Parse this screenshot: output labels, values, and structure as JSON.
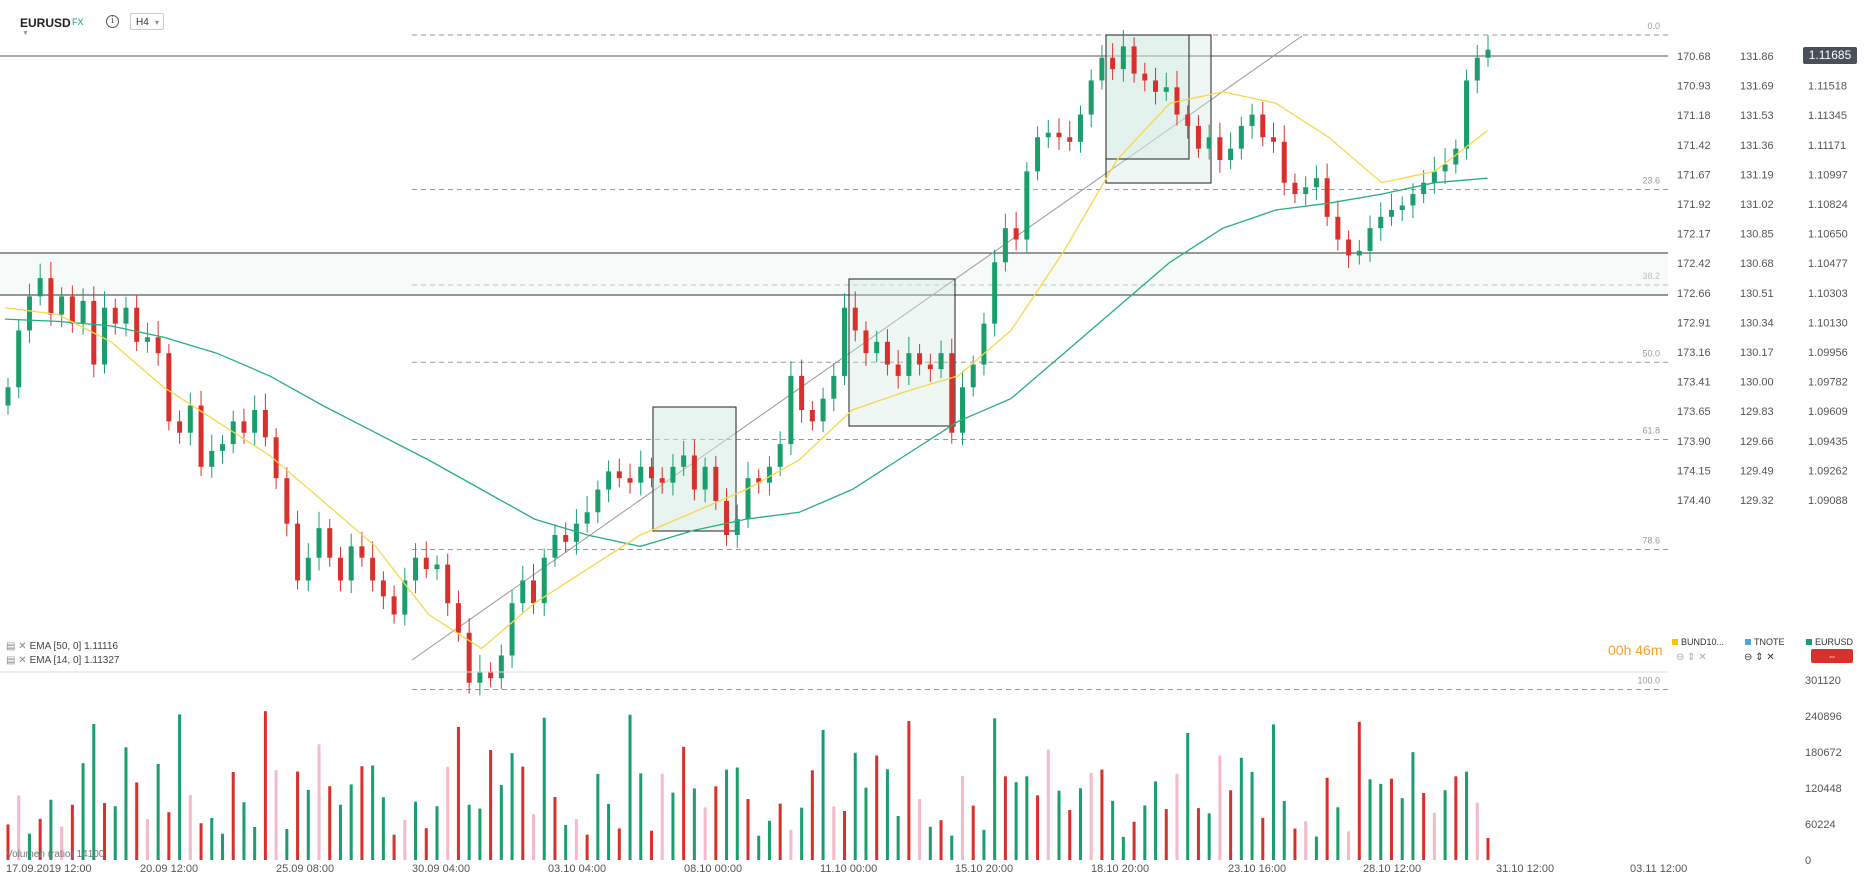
{
  "toolbar": {
    "symbol": "EURUSD",
    "type": "FX",
    "info_icon": "info-icon",
    "timeframe": "H4",
    "timeframe_chevron_icon": "chevron-down-icon"
  },
  "price_tag": "1.11685",
  "indicators": [
    {
      "label": "EMA [50, 0] 1.11116",
      "color": "#27ae84"
    },
    {
      "label": "EMA [14, 0] 1.11327",
      "color": "#f5d84a"
    }
  ],
  "countdown": "00h 46m",
  "volume_label": "Volumen (ratio) 14100",
  "legend": [
    {
      "name": "BUND10...",
      "color": "#f5c400"
    },
    {
      "name": "TNOTE",
      "color": "#4aa3df"
    },
    {
      "name": "EURUSD",
      "color": "#1a9e6c"
    }
  ],
  "legend_sub": [
    "⊖ ⇕ ✕",
    "⊖ ⇕ ✕",
    "⇔"
  ],
  "axes": {
    "right_col1": [
      "170.68",
      "170.93",
      "171.18",
      "171.42",
      "171.67",
      "171.92",
      "172.17",
      "172.42",
      "172.66",
      "172.91",
      "173.16",
      "173.41",
      "173.65",
      "173.90",
      "174.15",
      "174.40"
    ],
    "right_col2": [
      "131.86",
      "131.69",
      "131.53",
      "131.36",
      "131.19",
      "131.02",
      "130.85",
      "130.68",
      "130.51",
      "130.34",
      "130.17",
      "130.00",
      "129.83",
      "129.66",
      "129.49",
      "129.32"
    ],
    "right_col3": [
      "1.11685",
      "1.11518",
      "1.11345",
      "1.11171",
      "1.10997",
      "1.10824",
      "1.10650",
      "1.10477",
      "1.10303",
      "1.10130",
      "1.09956",
      "1.09782",
      "1.09609",
      "1.09435",
      "1.09262",
      "1.09088"
    ],
    "volume_ticks": [
      "301120",
      "240896",
      "180672",
      "120448",
      "60224",
      "0"
    ],
    "time_ticks": [
      "17.09.2019  12:00",
      "20.09  12:00",
      "25.09  08:00",
      "30.09  04:00",
      "03.10  04:00",
      "08.10  00:00",
      "11.10  00:00",
      "15.10  20:00",
      "18.10  20:00",
      "23.10  16:00",
      "28.10  12:00",
      "31.10  12:00",
      "03.11  12:00"
    ],
    "fib_levels": [
      "0.0",
      "23.6",
      "38.2",
      "50.0",
      "61.8",
      "78.6",
      "100.0"
    ]
  },
  "chart_data": {
    "type": "candlestick",
    "symbol": "EURUSD",
    "timeframe": "H4",
    "ylim": [
      1.09,
      1.1175
    ],
    "last_price": 1.11685,
    "ema50_last": 1.11116,
    "ema14_last": 1.11327,
    "fibonacci": {
      "high": 1.1175,
      "low": 1.0887,
      "levels": [
        0.0,
        23.6,
        38.2,
        50.0,
        61.8,
        78.6,
        100.0
      ]
    },
    "horizontal_lines": [
      1.11685,
      1.1077,
      1.1057
    ],
    "candles_close": [
      1.102,
      1.1045,
      1.106,
      1.1068,
      1.1052,
      1.106,
      1.1048,
      1.1058,
      1.103,
      1.1055,
      1.1048,
      1.1055,
      1.104,
      1.1042,
      1.1035,
      1.1005,
      1.1,
      1.1012,
      1.0985,
      1.0992,
      1.0995,
      1.1005,
      1.1,
      1.101,
      1.0998,
      1.098,
      1.096,
      1.0935,
      1.0945,
      1.0958,
      1.0945,
      1.0935,
      1.095,
      1.0945,
      1.0935,
      1.0928,
      1.092,
      1.0935,
      1.0945,
      1.094,
      1.0942,
      1.0925,
      1.0912,
      1.089,
      1.0895,
      1.0892,
      1.0902,
      1.0925,
      1.0935,
      1.0925,
      1.0945,
      1.0955,
      1.0952,
      1.096,
      1.0965,
      1.0975,
      1.0983,
      1.098,
      1.0978,
      1.0985,
      1.098,
      1.0978,
      1.0985,
      1.099,
      1.0975,
      1.0985,
      1.097,
      1.0955,
      1.0962,
      1.098,
      1.0978,
      1.0985,
      1.0995,
      1.1025,
      1.101,
      1.1005,
      1.1015,
      1.1025,
      1.1055,
      1.1045,
      1.1035,
      1.104,
      1.103,
      1.1025,
      1.1035,
      1.103,
      1.1028,
      1.1035,
      1.1,
      1.102,
      1.103,
      1.1048,
      1.1075,
      1.109,
      1.1085,
      1.1115,
      1.113,
      1.1132,
      1.113,
      1.1128,
      1.114,
      1.1155,
      1.1165,
      1.116,
      1.117,
      1.1158,
      1.1155,
      1.115,
      1.1152,
      1.114,
      1.1135,
      1.1125,
      1.113,
      1.112,
      1.1125,
      1.1135,
      1.114,
      1.113,
      1.1128,
      1.111,
      1.1105,
      1.1108,
      1.1112,
      1.1095,
      1.1085,
      1.1078,
      1.108,
      1.109,
      1.1095,
      1.1098,
      1.11,
      1.1105,
      1.111,
      1.1115,
      1.1118,
      1.1125,
      1.1155,
      1.1165,
      1.11685
    ],
    "ema50": [
      1.105,
      1.1049,
      1.1047,
      1.1042,
      1.1035,
      1.1025,
      1.1012,
      1.1,
      1.0988,
      1.0975,
      1.0962,
      1.0955,
      1.095,
      1.0957,
      1.0962,
      1.0965,
      1.0975,
      1.099,
      1.1005,
      1.1015,
      1.1035,
      1.1055,
      1.1075,
      1.109,
      1.1098,
      1.1101,
      1.1105,
      1.111,
      1.1112
    ],
    "ema14": [
      1.1055,
      1.1052,
      1.104,
      1.102,
      1.1005,
      1.099,
      1.097,
      1.095,
      1.092,
      1.0905,
      1.0925,
      1.094,
      1.0955,
      1.0965,
      1.0975,
      1.0988,
      1.101,
      1.1018,
      1.1025,
      1.1045,
      1.108,
      1.112,
      1.1145,
      1.115,
      1.1145,
      1.113,
      1.111,
      1.1115,
      1.1133
    ],
    "volume": [
      170000,
      150000,
      90000,
      80000,
      160000,
      140000,
      120000,
      300000,
      250000,
      140000,
      200000,
      230000,
      220000,
      190000,
      220000,
      160000,
      280000
    ]
  }
}
